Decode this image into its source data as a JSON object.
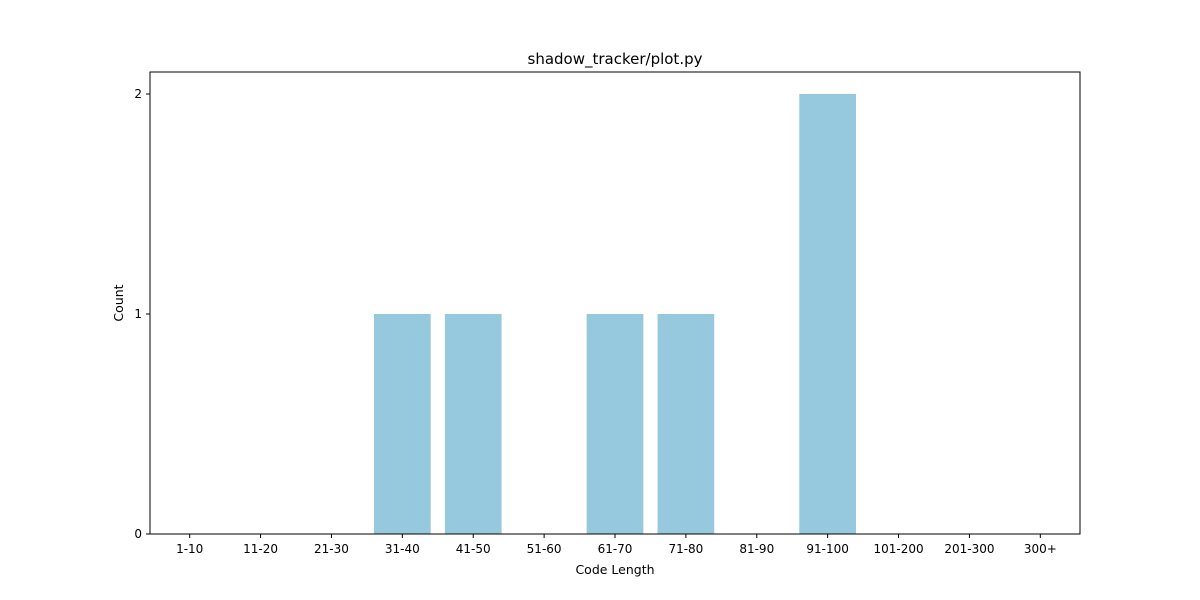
{
  "chart_data": {
    "type": "bar",
    "title": "shadow_tracker/plot.py",
    "xlabel": "Code Length",
    "ylabel": "Count",
    "categories": [
      "1-10",
      "11-20",
      "21-30",
      "31-40",
      "41-50",
      "51-60",
      "61-70",
      "71-80",
      "81-90",
      "91-100",
      "101-200",
      "201-300",
      "300+"
    ],
    "values": [
      0,
      0,
      0,
      1,
      1,
      0,
      1,
      1,
      0,
      2,
      0,
      0,
      0
    ],
    "yticks": [
      0,
      1,
      2
    ],
    "ylim": [
      0,
      2.1
    ],
    "bar_color": "#96c9dd",
    "grid": false
  }
}
